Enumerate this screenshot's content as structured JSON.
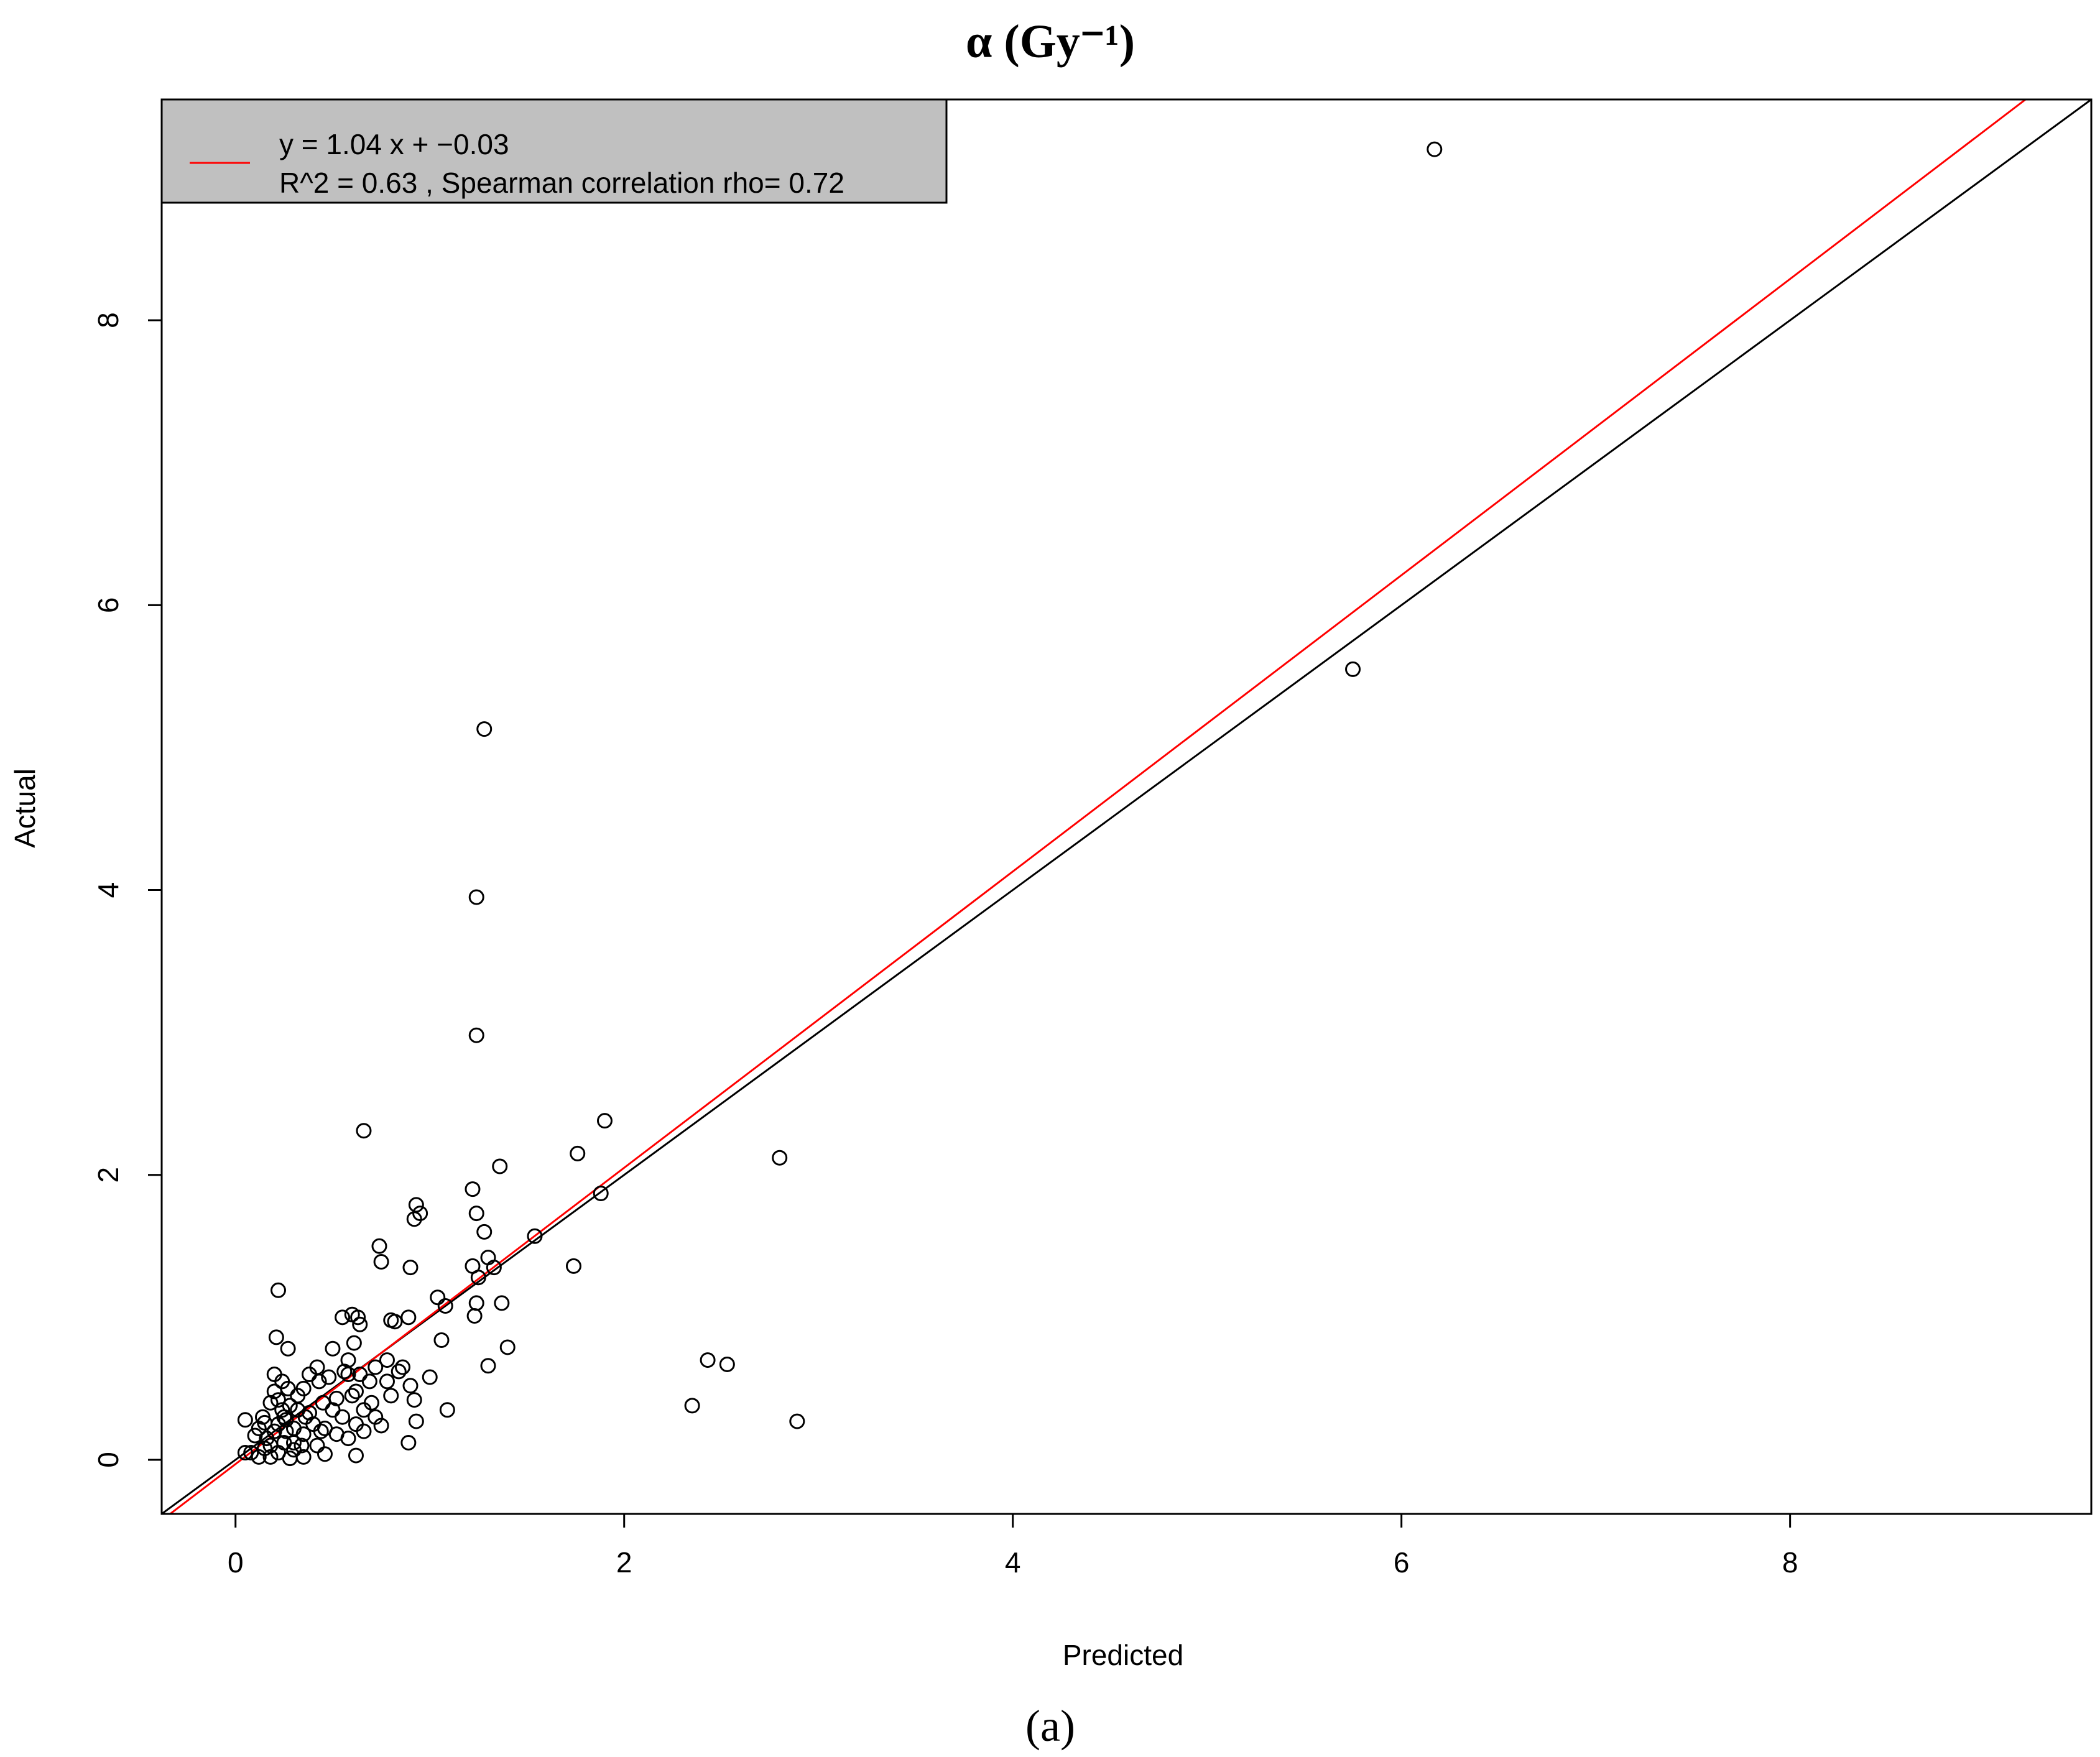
{
  "chart_data": {
    "type": "scatter",
    "title": "α (Gy⁻¹)",
    "xlabel": "Predicted",
    "ylabel": "Actual",
    "xlim": [
      -0.38,
      9.55
    ],
    "ylim": [
      -0.38,
      9.55
    ],
    "xticks": [
      0,
      2,
      4,
      6,
      8
    ],
    "yticks": [
      0,
      2,
      4,
      6,
      8
    ],
    "xtick_labels": [
      "0",
      "2",
      "4",
      "6",
      "8"
    ],
    "ytick_labels": [
      "0",
      "2",
      "4",
      "6",
      "8"
    ],
    "grid": false,
    "legend": {
      "placement": "top-left",
      "background": "#c0c0c0",
      "line1": "y =  1.04 x +  −0.03",
      "line2": "R^2 =  0.63 , Spearman correlation rho= 0.72"
    },
    "fit_line": {
      "slope": 1.04,
      "intercept": -0.03,
      "color": "#ff0000"
    },
    "identity_line": {
      "slope": 1,
      "intercept": 0,
      "color": "#000000"
    },
    "marker": "open-circle",
    "points": [
      [
        6.17,
        9.2
      ],
      [
        5.75,
        5.55
      ],
      [
        1.28,
        5.13
      ],
      [
        1.24,
        3.95
      ],
      [
        1.24,
        2.98
      ],
      [
        0.66,
        2.31
      ],
      [
        1.9,
        2.38
      ],
      [
        1.76,
        2.15
      ],
      [
        2.8,
        2.12
      ],
      [
        1.36,
        2.06
      ],
      [
        1.22,
        1.9
      ],
      [
        1.88,
        1.87
      ],
      [
        0.93,
        1.79
      ],
      [
        0.92,
        1.69
      ],
      [
        0.95,
        1.73
      ],
      [
        1.24,
        1.73
      ],
      [
        1.28,
        1.6
      ],
      [
        1.54,
        1.57
      ],
      [
        0.74,
        1.5
      ],
      [
        0.75,
        1.39
      ],
      [
        1.3,
        1.42
      ],
      [
        1.22,
        1.36
      ],
      [
        1.33,
        1.35
      ],
      [
        1.74,
        1.36
      ],
      [
        0.9,
        1.35
      ],
      [
        1.25,
        1.28
      ],
      [
        0.22,
        1.19
      ],
      [
        1.04,
        1.14
      ],
      [
        1.37,
        1.1
      ],
      [
        1.24,
        1.1
      ],
      [
        1.08,
        1.08
      ],
      [
        1.23,
        1.01
      ],
      [
        0.82,
        0.97
      ],
      [
        0.8,
        0.98
      ],
      [
        0.89,
        1.0
      ],
      [
        0.6,
        1.02
      ],
      [
        0.63,
        1.0
      ],
      [
        0.55,
        1.0
      ],
      [
        0.64,
        0.95
      ],
      [
        0.21,
        0.86
      ],
      [
        1.06,
        0.84
      ],
      [
        0.61,
        0.82
      ],
      [
        1.4,
        0.79
      ],
      [
        0.5,
        0.78
      ],
      [
        0.27,
        0.78
      ],
      [
        0.78,
        0.7
      ],
      [
        2.43,
        0.7
      ],
      [
        2.53,
        0.67
      ],
      [
        0.72,
        0.65
      ],
      [
        1.3,
        0.66
      ],
      [
        0.84,
        0.62
      ],
      [
        1.0,
        0.58
      ],
      [
        0.58,
        0.6
      ],
      [
        0.2,
        0.6
      ],
      [
        0.43,
        0.55
      ],
      [
        0.69,
        0.55
      ],
      [
        0.9,
        0.52
      ],
      [
        0.35,
        0.5
      ],
      [
        0.27,
        0.5
      ],
      [
        0.62,
        0.48
      ],
      [
        0.8,
        0.45
      ],
      [
        0.52,
        0.43
      ],
      [
        0.92,
        0.42
      ],
      [
        0.22,
        0.42
      ],
      [
        0.45,
        0.4
      ],
      [
        2.35,
        0.38
      ],
      [
        1.09,
        0.35
      ],
      [
        0.66,
        0.35
      ],
      [
        0.38,
        0.33
      ],
      [
        0.25,
        0.3
      ],
      [
        0.55,
        0.3
      ],
      [
        0.93,
        0.27
      ],
      [
        0.05,
        0.28
      ],
      [
        2.89,
        0.27
      ],
      [
        0.15,
        0.26
      ],
      [
        0.75,
        0.24
      ],
      [
        0.46,
        0.22
      ],
      [
        0.3,
        0.22
      ],
      [
        0.66,
        0.2
      ],
      [
        0.2,
        0.2
      ],
      [
        0.1,
        0.17
      ],
      [
        0.35,
        0.18
      ],
      [
        0.58,
        0.15
      ],
      [
        0.89,
        0.12
      ],
      [
        0.25,
        0.12
      ],
      [
        0.42,
        0.1
      ],
      [
        0.15,
        0.08
      ],
      [
        0.3,
        0.07
      ],
      [
        0.22,
        0.05
      ],
      [
        0.08,
        0.05
      ],
      [
        0.12,
        0.02
      ],
      [
        0.62,
        0.03
      ],
      [
        0.46,
        0.04
      ],
      [
        0.35,
        0.02
      ],
      [
        0.28,
        0.01
      ],
      [
        0.18,
        0.02
      ],
      [
        0.05,
        0.05
      ],
      [
        0.4,
        0.25
      ],
      [
        0.32,
        0.45
      ],
      [
        0.24,
        0.35
      ],
      [
        0.18,
        0.4
      ],
      [
        0.14,
        0.3
      ],
      [
        0.28,
        0.38
      ],
      [
        0.36,
        0.3
      ],
      [
        0.5,
        0.35
      ],
      [
        0.44,
        0.2
      ],
      [
        0.52,
        0.18
      ],
      [
        0.7,
        0.4
      ],
      [
        0.78,
        0.55
      ],
      [
        0.48,
        0.58
      ],
      [
        0.56,
        0.62
      ],
      [
        0.3,
        0.12
      ],
      [
        0.22,
        0.25
      ],
      [
        0.16,
        0.15
      ],
      [
        0.26,
        0.2
      ],
      [
        0.34,
        0.1
      ],
      [
        0.62,
        0.25
      ],
      [
        0.72,
        0.3
      ],
      [
        0.6,
        0.45
      ],
      [
        0.38,
        0.6
      ],
      [
        0.24,
        0.55
      ],
      [
        0.2,
        0.48
      ],
      [
        0.42,
        0.65
      ],
      [
        0.58,
        0.7
      ],
      [
        0.64,
        0.6
      ],
      [
        0.86,
        0.65
      ],
      [
        0.32,
        0.35
      ],
      [
        0.26,
        0.28
      ],
      [
        0.12,
        0.22
      ],
      [
        0.18,
        0.1
      ]
    ]
  },
  "caption": "(a)"
}
